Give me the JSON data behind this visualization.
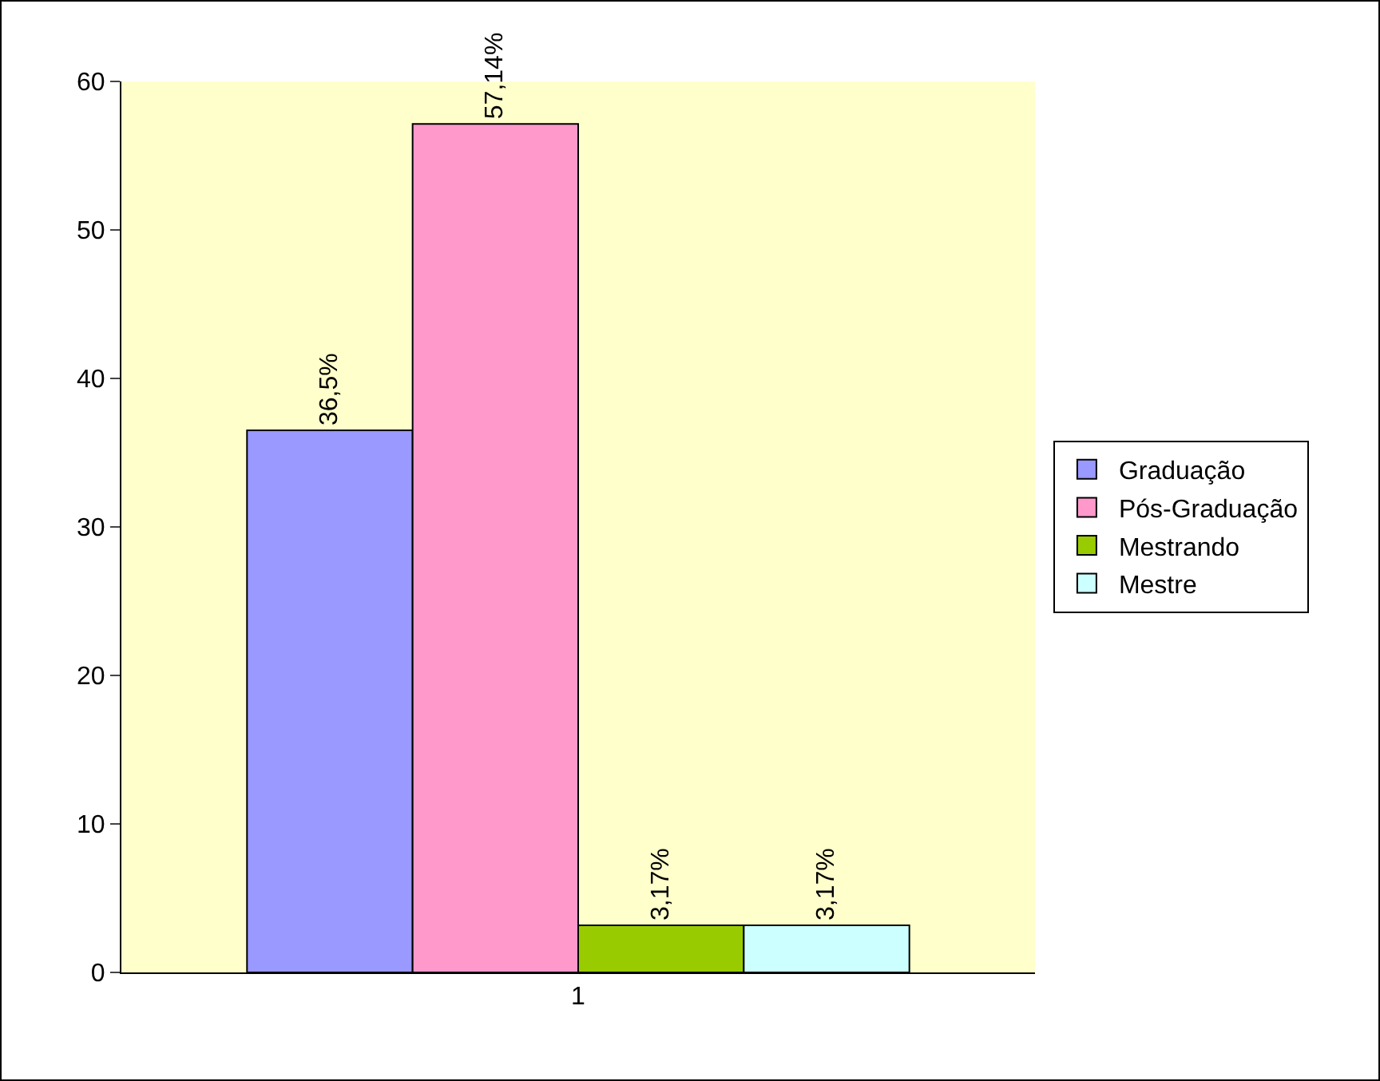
{
  "chart_data": {
    "type": "bar",
    "categories": [
      "1"
    ],
    "series": [
      {
        "name": "Graduação",
        "color": "#9999ff",
        "values": [
          36.5
        ],
        "value_labels": [
          "36,5%"
        ]
      },
      {
        "name": "Pós-Graduação",
        "color": "#ff99cc",
        "values": [
          57.14
        ],
        "value_labels": [
          "57,14%"
        ]
      },
      {
        "name": "Mestrando",
        "color": "#99cc00",
        "values": [
          3.17
        ],
        "value_labels": [
          "3,17%"
        ]
      },
      {
        "name": "Mestre",
        "color": "#ccffff",
        "values": [
          3.17
        ],
        "value_labels": [
          "3,17%"
        ]
      }
    ],
    "ylim": [
      0,
      60
    ],
    "yticks": [
      0,
      10,
      20,
      30,
      40,
      50,
      60
    ],
    "grid": false,
    "legend": "right"
  }
}
